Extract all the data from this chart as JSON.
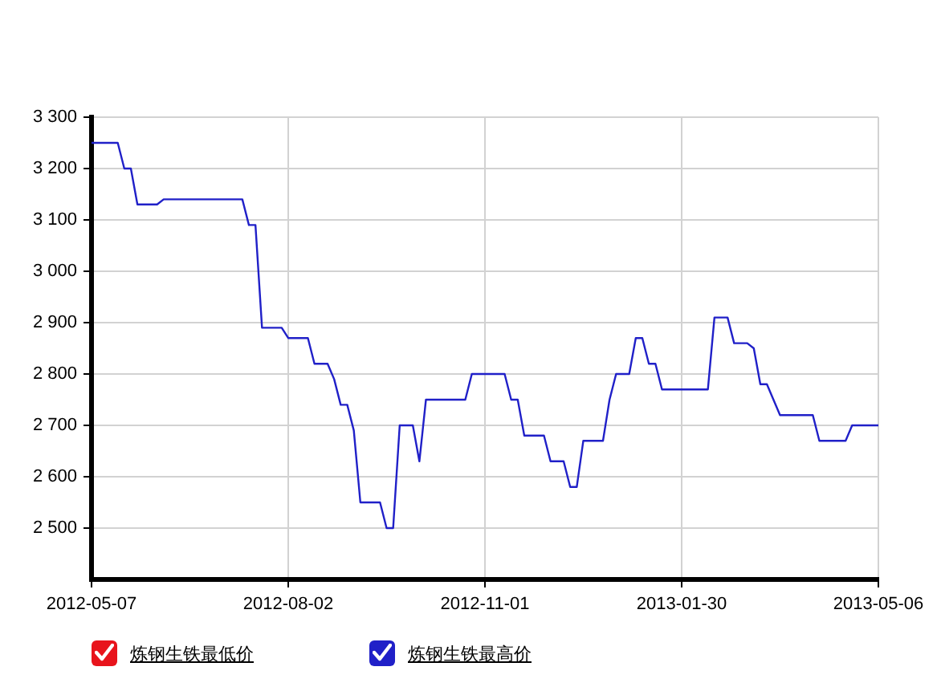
{
  "chart_data": {
    "type": "line",
    "categories": [
      "2012-05-07",
      null,
      null,
      null,
      null,
      null,
      null,
      null,
      null,
      null,
      null,
      null,
      null,
      null,
      null,
      null,
      null,
      null,
      null,
      null,
      null,
      null,
      null,
      null,
      null,
      null,
      null,
      null,
      null,
      null,
      "2012-08-02",
      null,
      null,
      null,
      null,
      null,
      null,
      null,
      null,
      null,
      null,
      null,
      null,
      null,
      null,
      null,
      null,
      null,
      null,
      null,
      null,
      null,
      null,
      null,
      null,
      null,
      null,
      null,
      null,
      null,
      "2012-11-01",
      null,
      null,
      null,
      null,
      null,
      null,
      null,
      null,
      null,
      null,
      null,
      null,
      null,
      null,
      null,
      null,
      null,
      null,
      null,
      null,
      null,
      null,
      null,
      null,
      null,
      null,
      null,
      null,
      null,
      "2013-01-30",
      null,
      null,
      null,
      null,
      null,
      null,
      null,
      null,
      null,
      null,
      null,
      null,
      null,
      null,
      null,
      null,
      null,
      null,
      null,
      null,
      null,
      null,
      null,
      null,
      null,
      null,
      null,
      null,
      null,
      "2013-05-06"
    ],
    "series": [
      {
        "name": "炼钢生铁最低价",
        "color": "#e8141c",
        "values": [
          null,
          null,
          null,
          null,
          null,
          null,
          null,
          null,
          null,
          null,
          null,
          null,
          null,
          null,
          null,
          null,
          null,
          null,
          null,
          null,
          null,
          null,
          null,
          null,
          null,
          null,
          null,
          null,
          null,
          null,
          null,
          null,
          null,
          null,
          null,
          null,
          null,
          null,
          null,
          null,
          null,
          null,
          null,
          null,
          null,
          null,
          null,
          null,
          null,
          null,
          null,
          null,
          null,
          null,
          null,
          null,
          null,
          null,
          null,
          null,
          null,
          null,
          null,
          null,
          null,
          null,
          null,
          null,
          null,
          null,
          null,
          null,
          null,
          null,
          null,
          null,
          null,
          null,
          null,
          null,
          null,
          null,
          null,
          null,
          null,
          null,
          null,
          null,
          null,
          null,
          null,
          null,
          null,
          null,
          null,
          null,
          null,
          null,
          null,
          null,
          null,
          null,
          null,
          null,
          null,
          null,
          null,
          null,
          null,
          null,
          null,
          null,
          null,
          null,
          null,
          null,
          null,
          null,
          null,
          null,
          null
        ]
      },
      {
        "name": "炼钢生铁最高价",
        "color": "#2020c8",
        "values": [
          3250,
          3250,
          3250,
          3250,
          3250,
          3200,
          3200,
          3130,
          3130,
          3130,
          3130,
          3140,
          3140,
          3140,
          3140,
          3140,
          3140,
          3140,
          3140,
          3140,
          3140,
          3140,
          3140,
          3140,
          3090,
          3090,
          2890,
          2890,
          2890,
          2890,
          2870,
          2870,
          2870,
          2870,
          2820,
          2820,
          2820,
          2790,
          2740,
          2740,
          2690,
          2550,
          2550,
          2550,
          2550,
          2500,
          2500,
          2700,
          2700,
          2700,
          2630,
          2750,
          2750,
          2750,
          2750,
          2750,
          2750,
          2750,
          2800,
          2800,
          2800,
          2800,
          2800,
          2800,
          2750,
          2750,
          2680,
          2680,
          2680,
          2680,
          2630,
          2630,
          2630,
          2580,
          2580,
          2670,
          2670,
          2670,
          2670,
          2750,
          2800,
          2800,
          2800,
          2870,
          2870,
          2820,
          2820,
          2770,
          2770,
          2770,
          2770,
          2770,
          2770,
          2770,
          2770,
          2910,
          2910,
          2910,
          2860,
          2860,
          2860,
          2850,
          2780,
          2780,
          2750,
          2720,
          2720,
          2720,
          2720,
          2720,
          2720,
          2670,
          2670,
          2670,
          2670,
          2670,
          2700,
          2700,
          2700,
          2700,
          2700
        ]
      }
    ],
    "ylim": [
      2400,
      3300
    ],
    "yticks": [
      {
        "value": 2500,
        "label": "2 500"
      },
      {
        "value": 2600,
        "label": "2 600"
      },
      {
        "value": 2700,
        "label": "2 700"
      },
      {
        "value": 2800,
        "label": "2 800"
      },
      {
        "value": 2900,
        "label": "2 900"
      },
      {
        "value": 3000,
        "label": "3 000"
      },
      {
        "value": 3100,
        "label": "3 100"
      },
      {
        "value": 3200,
        "label": "3 200"
      },
      {
        "value": 3300,
        "label": "3 300"
      }
    ],
    "grid": true,
    "legend": "bottom left",
    "marker": "none"
  }
}
